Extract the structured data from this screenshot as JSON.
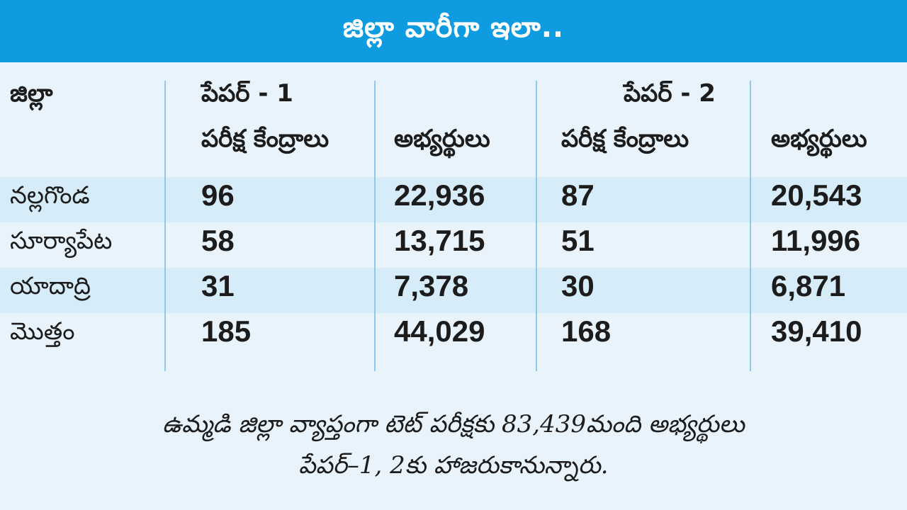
{
  "title": "జిల్లా వారీగా ఇలా..",
  "colors": {
    "banner": "#0f9be0",
    "band_light": "#d6ecf8",
    "band_pale": "#e8f3fb",
    "divider": "#8fc8ea"
  },
  "table": {
    "header": {
      "district": "జిల్లా",
      "paper1": "పేపర్ - 1",
      "paper2": "పేపర్ - 2",
      "centers": "పరీక్ష కేంద్రాలు",
      "candidates": "అభ్యర్థులు"
    },
    "rows": [
      {
        "district": "నల్లగొండ",
        "p1_centers": "96",
        "p1_candidates": "22,936",
        "p2_centers": "87",
        "p2_candidates": "20,543"
      },
      {
        "district": "సూర్యాపేట",
        "p1_centers": "58",
        "p1_candidates": "13,715",
        "p2_centers": "51",
        "p2_candidates": "11,996"
      },
      {
        "district": "యాదాద్రి",
        "p1_centers": "31",
        "p1_candidates": "7,378",
        "p2_centers": "30",
        "p2_candidates": "6,871"
      },
      {
        "district": "మొత్తం",
        "p1_centers": "185",
        "p1_candidates": "44,029",
        "p2_centers": "168",
        "p2_candidates": "39,410"
      }
    ]
  },
  "footer": {
    "line1": "ఉమ్మడి జిల్లా వ్యాప్తంగా టెట్ పరీక్షకు 83,439మంది అభ్యర్థులు",
    "line2": "పేపర్–1, 2కు హాజరుకానున్నారు."
  }
}
